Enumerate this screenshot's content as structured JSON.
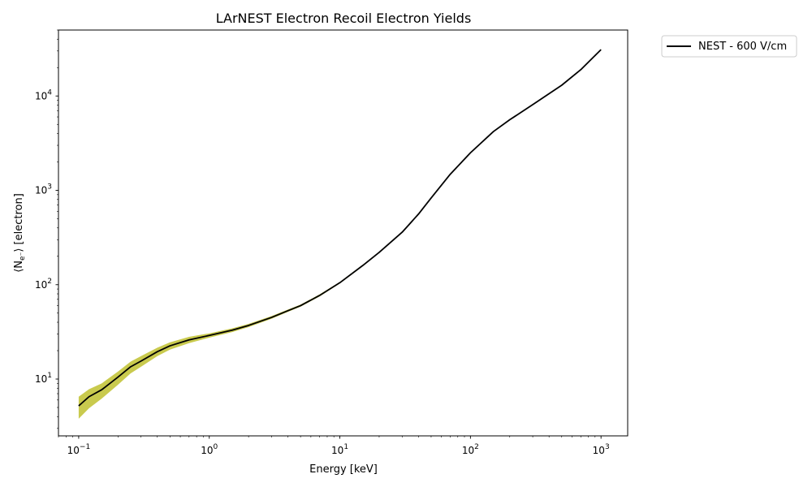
{
  "chart_data": {
    "type": "line",
    "title": "LArNEST Electron Recoil Electron Yields",
    "xlabel": "Energy [keV]",
    "ylabel": "⟨N",
    "ylabel_sub": "e⁻",
    "ylabel_rest": "⟩ [electron]",
    "xscale": "log",
    "yscale": "log",
    "xlim": [
      0.07,
      1600
    ],
    "ylim": [
      2.5,
      50000
    ],
    "x_ticks": [
      {
        "value": 0.1,
        "base": "10",
        "exp": "−1"
      },
      {
        "value": 1,
        "base": "10",
        "exp": "0"
      },
      {
        "value": 10,
        "base": "10",
        "exp": "1"
      },
      {
        "value": 100,
        "base": "10",
        "exp": "2"
      },
      {
        "value": 1000,
        "base": "10",
        "exp": "3"
      }
    ],
    "y_ticks": [
      {
        "value": 10,
        "base": "10",
        "exp": "1"
      },
      {
        "value": 100,
        "base": "10",
        "exp": "2"
      },
      {
        "value": 1000,
        "base": "10",
        "exp": "3"
      },
      {
        "value": 10000,
        "base": "10",
        "exp": "4"
      }
    ],
    "grid": false,
    "legend_position": "outside-top-right",
    "series": [
      {
        "name": "NEST - 600 V/cm",
        "color": "#000000",
        "band_color": "#bcbd22",
        "x": [
          0.1,
          0.12,
          0.15,
          0.2,
          0.25,
          0.3,
          0.4,
          0.5,
          0.7,
          1,
          1.5,
          2,
          3,
          4,
          5,
          7,
          10,
          15,
          20,
          30,
          40,
          50,
          70,
          100,
          150,
          200,
          300,
          500,
          700,
          1000
        ],
        "y": [
          5.2,
          6.5,
          7.7,
          10.5,
          13.5,
          15.5,
          19.5,
          22.5,
          26,
          29,
          33,
          37,
          45,
          53,
          60,
          77,
          105,
          160,
          220,
          360,
          560,
          830,
          1480,
          2500,
          4200,
          5600,
          8100,
          13000,
          19000,
          31000
        ],
        "y_lower": [
          3.8,
          4.9,
          6.2,
          8.7,
          11.5,
          13.5,
          17.5,
          20.5,
          24,
          27.5,
          31.5,
          35.5,
          43.5,
          51.5,
          58.5,
          75,
          103,
          157,
          217,
          355,
          553,
          820,
          1465,
          2480,
          4170,
          5560,
          8040,
          12900,
          18900,
          30800
        ],
        "y_upper": [
          6.5,
          7.8,
          9.0,
          12.0,
          15.3,
          17.5,
          21.5,
          24.5,
          28,
          30.5,
          34.5,
          38.5,
          46.5,
          54.5,
          61.5,
          79,
          107,
          163,
          223,
          365,
          567,
          840,
          1495,
          2520,
          4230,
          5640,
          8160,
          13100,
          19100,
          31200
        ]
      }
    ]
  }
}
